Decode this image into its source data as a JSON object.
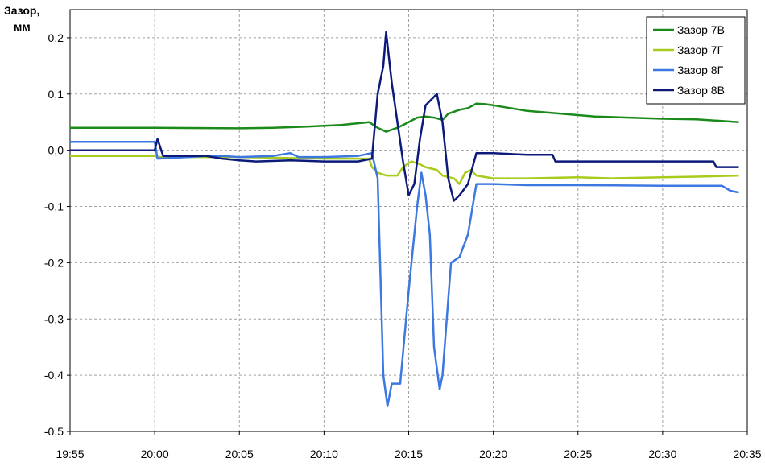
{
  "chart_data": {
    "type": "line",
    "title": "",
    "xlabel": "",
    "ylabel": [
      "Зазор,",
      "мм"
    ],
    "xlim": [
      "19:55",
      "20:35"
    ],
    "ylim": [
      -0.5,
      0.25
    ],
    "x_ticks": [
      "19:55",
      "20:00",
      "20:05",
      "20:10",
      "20:15",
      "20:20",
      "20:25",
      "20:30",
      "20:35"
    ],
    "y_ticks": [
      "0,2",
      "0,1",
      "0,0",
      "-0,1",
      "-0,2",
      "-0,3",
      "-0,4",
      "-0,5"
    ],
    "grid": true,
    "legend_position": "top-right",
    "series": [
      {
        "name": "Зазор 7В",
        "color": "#1a8a1a",
        "points": [
          [
            "19:55",
            0.04
          ],
          [
            "20:00",
            0.04
          ],
          [
            "20:05",
            0.039
          ],
          [
            "20:07",
            0.04
          ],
          [
            "20:09",
            0.042
          ],
          [
            "20:11",
            0.045
          ],
          [
            "20:12",
            0.048
          ],
          [
            "20:12:40",
            0.05
          ],
          [
            "20:13:10",
            0.04
          ],
          [
            "20:13:40",
            0.033
          ],
          [
            "20:14:20",
            0.04
          ],
          [
            "20:15",
            0.05
          ],
          [
            "20:15:30",
            0.058
          ],
          [
            "20:16",
            0.06
          ],
          [
            "20:16:30",
            0.058
          ],
          [
            "20:17",
            0.054
          ],
          [
            "20:17:20",
            0.065
          ],
          [
            "20:18",
            0.072
          ],
          [
            "20:18:30",
            0.075
          ],
          [
            "20:19",
            0.083
          ],
          [
            "20:19:30",
            0.082
          ],
          [
            "20:20",
            0.08
          ],
          [
            "20:21",
            0.075
          ],
          [
            "20:22",
            0.07
          ],
          [
            "20:24",
            0.065
          ],
          [
            "20:26",
            0.06
          ],
          [
            "20:28",
            0.058
          ],
          [
            "20:30",
            0.056
          ],
          [
            "20:32",
            0.055
          ],
          [
            "20:33",
            0.053
          ],
          [
            "20:34:30",
            0.05
          ]
        ]
      },
      {
        "name": "Зазор 7Г",
        "color": "#a8cc1c",
        "points": [
          [
            "19:55",
            -0.01
          ],
          [
            "20:00",
            -0.01
          ],
          [
            "20:00:10",
            -0.012
          ],
          [
            "20:05",
            -0.012
          ],
          [
            "20:10",
            -0.015
          ],
          [
            "20:12",
            -0.015
          ],
          [
            "20:12:40",
            -0.015
          ],
          [
            "20:12:50",
            -0.03
          ],
          [
            "20:13:10",
            -0.04
          ],
          [
            "20:13:40",
            -0.045
          ],
          [
            "20:14:20",
            -0.045
          ],
          [
            "20:14:40",
            -0.03
          ],
          [
            "20:15:10",
            -0.02
          ],
          [
            "20:15:40",
            -0.025
          ],
          [
            "20:16",
            -0.03
          ],
          [
            "20:16:40",
            -0.035
          ],
          [
            "20:17",
            -0.045
          ],
          [
            "20:17:40",
            -0.05
          ],
          [
            "20:18",
            -0.06
          ],
          [
            "20:18:20",
            -0.04
          ],
          [
            "20:18:40",
            -0.035
          ],
          [
            "20:19",
            -0.045
          ],
          [
            "20:20",
            -0.05
          ],
          [
            "20:22",
            -0.05
          ],
          [
            "20:25",
            -0.048
          ],
          [
            "20:27",
            -0.05
          ],
          [
            "20:30",
            -0.048
          ],
          [
            "20:32",
            -0.047
          ],
          [
            "20:34:30",
            -0.045
          ]
        ]
      },
      {
        "name": "Зазор 8Г",
        "color": "#3d78e0",
        "points": [
          [
            "19:55",
            0.015
          ],
          [
            "20:00",
            0.015
          ],
          [
            "20:00:10",
            -0.015
          ],
          [
            "20:02",
            -0.012
          ],
          [
            "20:03",
            -0.01
          ],
          [
            "20:04",
            -0.01
          ],
          [
            "20:05",
            -0.012
          ],
          [
            "20:07",
            -0.01
          ],
          [
            "20:08",
            -0.005
          ],
          [
            "20:08:30",
            -0.012
          ],
          [
            "20:10",
            -0.012
          ],
          [
            "20:12",
            -0.01
          ],
          [
            "20:12:50",
            -0.005
          ],
          [
            "20:13:10",
            -0.05
          ],
          [
            "20:13:30",
            -0.4
          ],
          [
            "20:13:45",
            -0.455
          ],
          [
            "20:14",
            -0.415
          ],
          [
            "20:14:30",
            -0.415
          ],
          [
            "20:15",
            -0.25
          ],
          [
            "20:15:30",
            -0.1
          ],
          [
            "20:15:45",
            -0.04
          ],
          [
            "20:16",
            -0.08
          ],
          [
            "20:16:15",
            -0.15
          ],
          [
            "20:16:30",
            -0.35
          ],
          [
            "20:16:50",
            -0.425
          ],
          [
            "20:17",
            -0.4
          ],
          [
            "20:17:30",
            -0.2
          ],
          [
            "20:18",
            -0.19
          ],
          [
            "20:18:30",
            -0.15
          ],
          [
            "20:19",
            -0.06
          ],
          [
            "20:20",
            -0.06
          ],
          [
            "20:22",
            -0.062
          ],
          [
            "20:25",
            -0.062
          ],
          [
            "20:30",
            -0.063
          ],
          [
            "20:33:30",
            -0.063
          ],
          [
            "20:34",
            -0.072
          ],
          [
            "20:34:30",
            -0.075
          ]
        ]
      },
      {
        "name": "Зазор 8В",
        "color": "#0c1a7a",
        "points": [
          [
            "19:55",
            0.0
          ],
          [
            "20:00",
            0.0
          ],
          [
            "20:00:10",
            0.02
          ],
          [
            "20:00:30",
            -0.01
          ],
          [
            "20:02",
            -0.01
          ],
          [
            "20:03",
            -0.01
          ],
          [
            "20:04",
            -0.015
          ],
          [
            "20:05",
            -0.018
          ],
          [
            "20:06",
            -0.02
          ],
          [
            "20:08",
            -0.018
          ],
          [
            "20:10",
            -0.02
          ],
          [
            "20:12",
            -0.02
          ],
          [
            "20:12:50",
            -0.015
          ],
          [
            "20:13:10",
            0.1
          ],
          [
            "20:13:30",
            0.15
          ],
          [
            "20:13:40",
            0.21
          ],
          [
            "20:14",
            0.12
          ],
          [
            "20:14:20",
            0.05
          ],
          [
            "20:14:40",
            -0.02
          ],
          [
            "20:15",
            -0.08
          ],
          [
            "20:15:20",
            -0.06
          ],
          [
            "20:15:40",
            0.02
          ],
          [
            "20:16",
            0.08
          ],
          [
            "20:16:40",
            0.1
          ],
          [
            "20:17",
            0.05
          ],
          [
            "20:17:20",
            -0.05
          ],
          [
            "20:17:40",
            -0.09
          ],
          [
            "20:18",
            -0.08
          ],
          [
            "20:18:30",
            -0.06
          ],
          [
            "20:19",
            -0.005
          ],
          [
            "20:20",
            -0.005
          ],
          [
            "20:22",
            -0.008
          ],
          [
            "20:23:30",
            -0.008
          ],
          [
            "20:23:40",
            -0.02
          ],
          [
            "20:25",
            -0.02
          ],
          [
            "20:28",
            -0.02
          ],
          [
            "20:30",
            -0.02
          ],
          [
            "20:33",
            -0.02
          ],
          [
            "20:33:10",
            -0.03
          ],
          [
            "20:34:30",
            -0.03
          ]
        ]
      }
    ]
  }
}
